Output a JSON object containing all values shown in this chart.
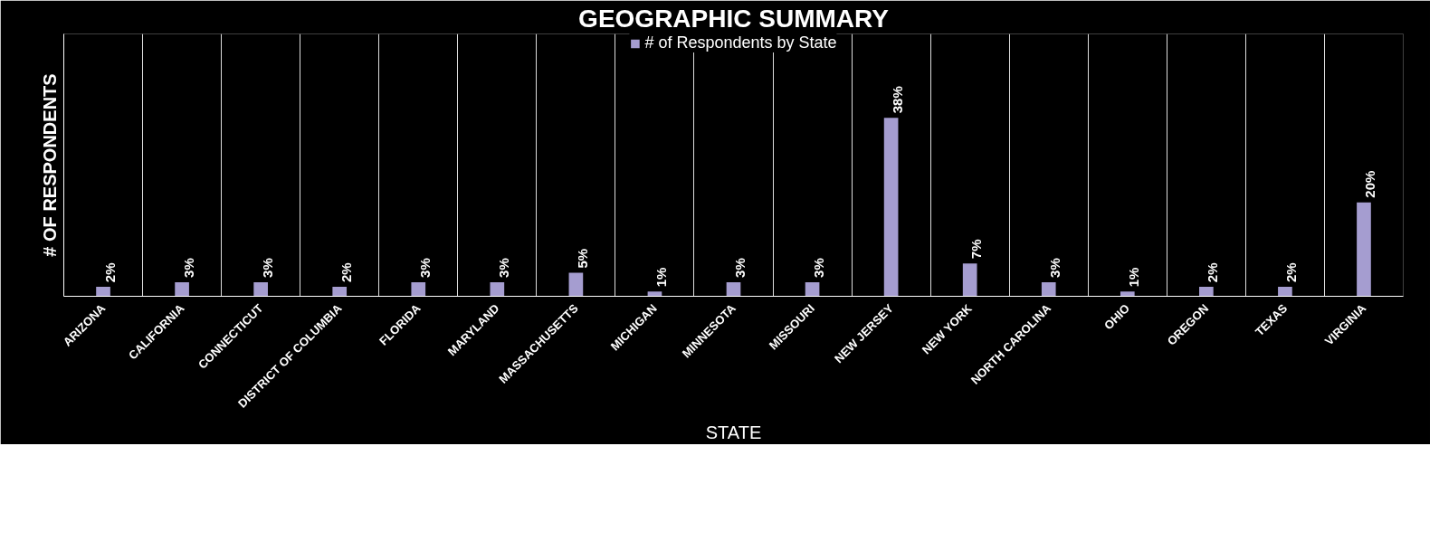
{
  "chart_data": {
    "type": "bar",
    "title": "GEOGRAPHIC SUMMARY",
    "xlabel": "STATE",
    "ylabel": "# OF RESPONDENTS",
    "categories": [
      "ARIZONA",
      "CALIFORNIA",
      "CONNECTICUT",
      "DISTRICT OF COLUMBIA",
      "FLORIDA",
      "MARYLAND",
      "MASSACHUSETTS",
      "MICHIGAN",
      "MINNESOTA",
      "MISSOURI",
      "NEW JERSEY",
      "NEW YORK",
      "NORTH CAROLINA",
      "OHIO",
      "OREGON",
      "TEXAS",
      "VIRGINIA"
    ],
    "series": [
      {
        "name": "# of Respondents by State",
        "color": "#a59dd0",
        "values": [
          2,
          3,
          3,
          2,
          3,
          3,
          5,
          1,
          3,
          3,
          38,
          7,
          3,
          1,
          2,
          2,
          20
        ],
        "value_labels": [
          "2%",
          "3%",
          "3%",
          "2%",
          "3%",
          "3%",
          "5%",
          "1%",
          "3%",
          "3%",
          "38%",
          "7%",
          "3%",
          "1%",
          "2%",
          "2%",
          "20%"
        ]
      }
    ],
    "grid": "x",
    "legend": "top"
  }
}
